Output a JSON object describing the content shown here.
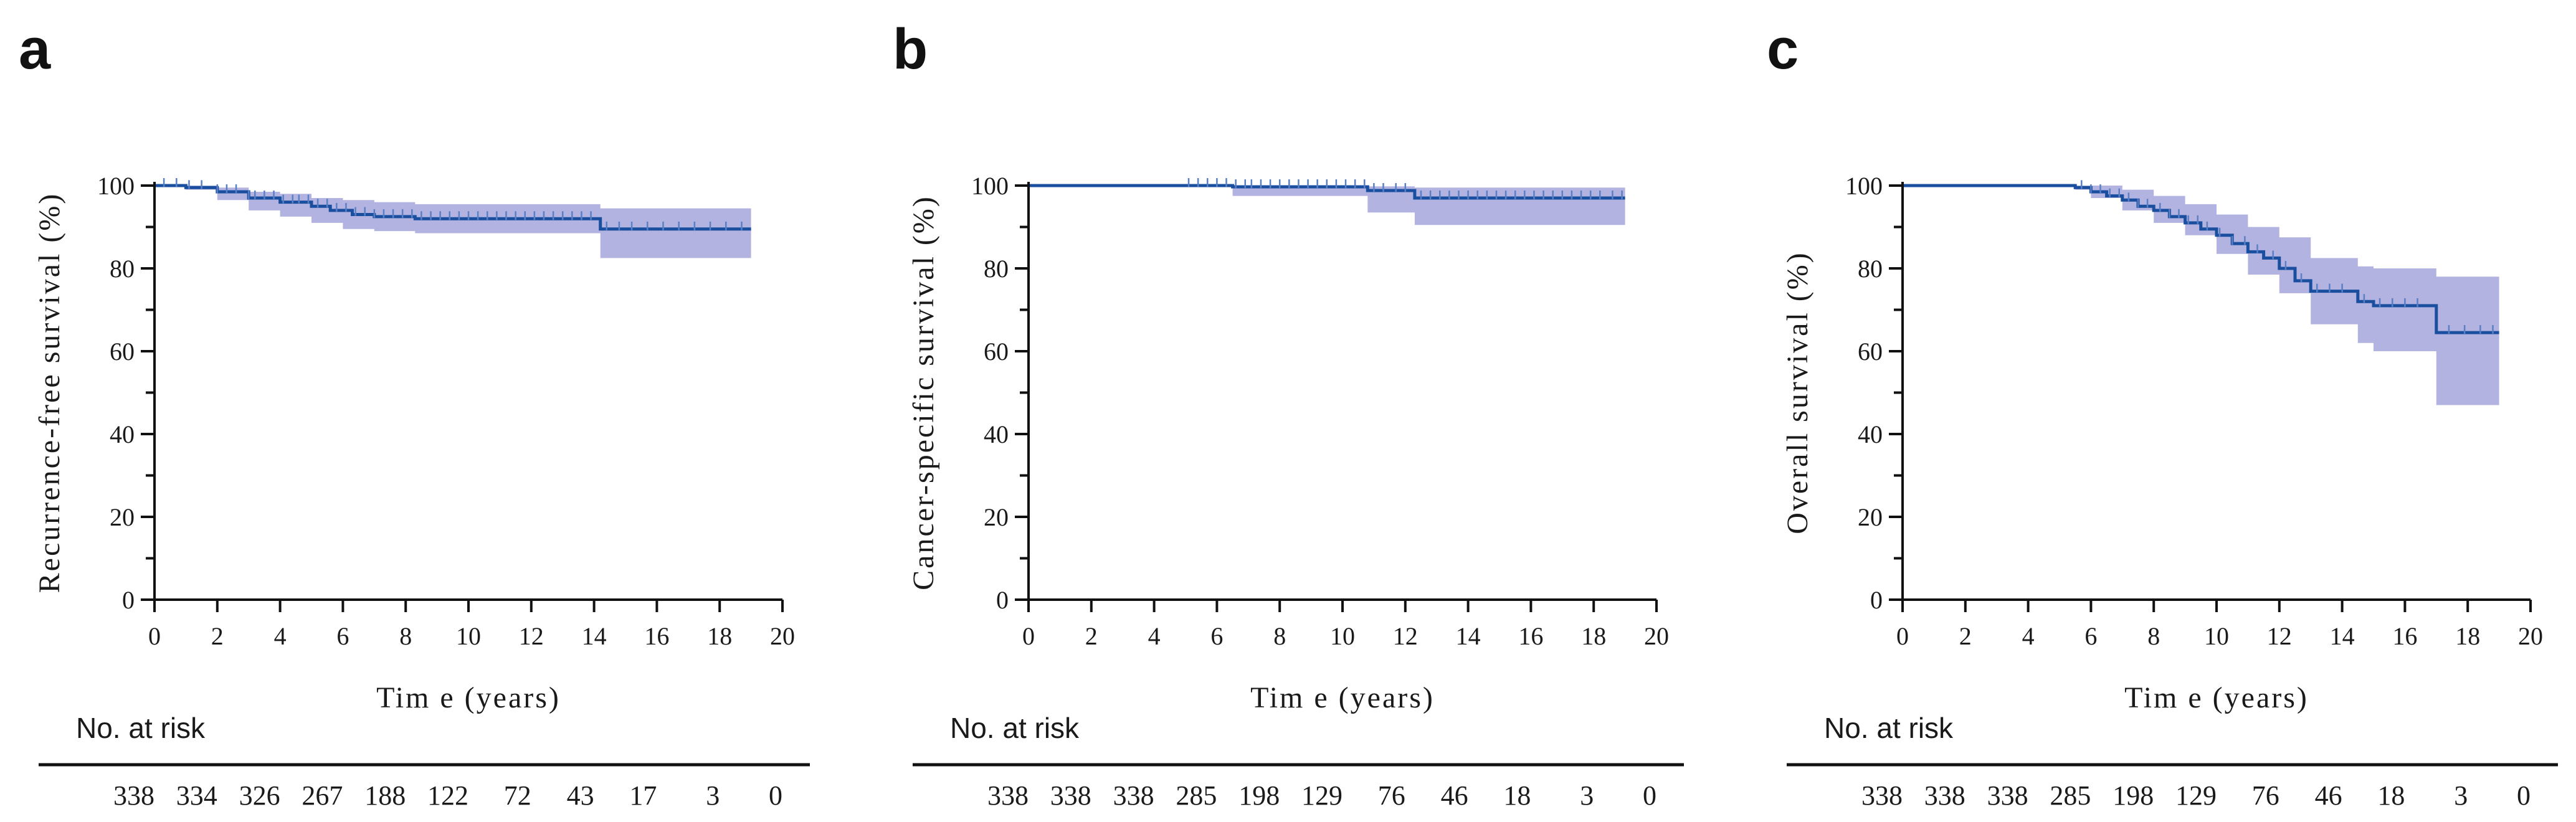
{
  "colors": {
    "line": "#1a4fa0",
    "band": "#b3b3e2",
    "axis": "#111111",
    "censor": "#5a7fc4"
  },
  "chart_data": [
    {
      "panel": "a",
      "type": "line",
      "title": "",
      "xlabel": "Tim e  (years)",
      "ylabel": "Recurrence-free survival (%)",
      "xlim": [
        0,
        20
      ],
      "ylim": [
        0,
        100
      ],
      "xticks": [
        0,
        2,
        4,
        6,
        8,
        10,
        12,
        14,
        16,
        18,
        20
      ],
      "yticks": [
        0,
        20,
        40,
        60,
        80,
        100
      ],
      "series": [
        {
          "name": "survival",
          "x": [
            0,
            1,
            2,
            3,
            4,
            5,
            5.6,
            6.3,
            7,
            8.3,
            14.2,
            19
          ],
          "y": [
            100,
            99.5,
            98.5,
            97,
            96,
            95,
            94,
            93,
            92.5,
            92,
            89.5,
            89.5
          ]
        },
        {
          "name": "ci_upper",
          "x": [
            0,
            1,
            2,
            3,
            4,
            5,
            6,
            7,
            8.3,
            14.2,
            19
          ],
          "y": [
            100,
            100,
            99.5,
            98.5,
            98,
            97,
            96.5,
            96,
            95.5,
            94.5,
            94.5
          ]
        },
        {
          "name": "ci_lower",
          "x": [
            0,
            1,
            2,
            3,
            4,
            5,
            6,
            7,
            8.3,
            14.2,
            19
          ],
          "y": [
            100,
            99,
            96.5,
            94,
            92.5,
            91,
            89.5,
            89,
            88.5,
            82.5,
            82.5
          ]
        }
      ],
      "censor_x": [
        0.3,
        0.7,
        1.1,
        1.5,
        2.0,
        2.3,
        2.6,
        3.0,
        3.2,
        3.5,
        3.8,
        4.1,
        4.4,
        4.6,
        4.9,
        5.2,
        5.5,
        5.8,
        6.1,
        6.4,
        6.7,
        7.0,
        7.3,
        7.6,
        7.9,
        8.2,
        8.5,
        8.8,
        9.1,
        9.4,
        9.7,
        10.0,
        10.3,
        10.6,
        10.9,
        11.2,
        11.5,
        11.8,
        12.1,
        12.4,
        12.7,
        13.0,
        13.3,
        13.6,
        13.9,
        14.4,
        14.8,
        15.2,
        15.7,
        16.2,
        16.7,
        17.2,
        17.7,
        18.2,
        18.7
      ],
      "risk_title": "No. at risk",
      "risk_numbers": [
        "338",
        "334",
        "326",
        "267",
        "188",
        "122",
        "72",
        "43",
        "17",
        "3",
        "0"
      ]
    },
    {
      "panel": "b",
      "type": "line",
      "title": "",
      "xlabel": "Tim e  (years)",
      "ylabel": "Cancer-specific survival (%)",
      "xlim": [
        0,
        20
      ],
      "ylim": [
        0,
        100
      ],
      "xticks": [
        0,
        2,
        4,
        6,
        8,
        10,
        12,
        14,
        16,
        18,
        20
      ],
      "yticks": [
        0,
        20,
        40,
        60,
        80,
        100
      ],
      "series": [
        {
          "name": "survival",
          "x": [
            0,
            6.5,
            10.8,
            12.3,
            19
          ],
          "y": [
            100,
            99.7,
            98.8,
            97,
            97
          ]
        },
        {
          "name": "ci_upper",
          "x": [
            0,
            6.5,
            10.8,
            12.3,
            19
          ],
          "y": [
            100,
            100,
            99.8,
            99.5,
            99.5
          ]
        },
        {
          "name": "ci_lower",
          "x": [
            0,
            6.5,
            10.8,
            12.3,
            19
          ],
          "y": [
            100,
            97.5,
            93.5,
            90.5,
            90.5
          ]
        }
      ],
      "censor_x": [
        5.1,
        5.4,
        5.7,
        6.0,
        6.3,
        6.6,
        6.9,
        7.1,
        7.4,
        7.7,
        8.0,
        8.3,
        8.6,
        8.9,
        9.2,
        9.5,
        9.8,
        10.1,
        10.4,
        10.7,
        11.0,
        11.3,
        11.7,
        12.0,
        12.5,
        12.8,
        13.1,
        13.4,
        13.7,
        14.0,
        14.3,
        14.6,
        14.9,
        15.2,
        15.5,
        15.8,
        16.1,
        16.4,
        16.7,
        17.0,
        17.3,
        17.6,
        17.9,
        18.2,
        18.6,
        18.9
      ],
      "risk_title": "No. at risk",
      "risk_numbers": [
        "338",
        "338",
        "338",
        "285",
        "198",
        "129",
        "76",
        "46",
        "18",
        "3",
        "0"
      ]
    },
    {
      "panel": "c",
      "type": "line",
      "title": "",
      "xlabel": "Tim e  (years)",
      "ylabel": "Overall survival (%)",
      "xlim": [
        0,
        20
      ],
      "ylim": [
        0,
        100
      ],
      "xticks": [
        0,
        2,
        4,
        6,
        8,
        10,
        12,
        14,
        16,
        18,
        20
      ],
      "yticks": [
        0,
        20,
        40,
        60,
        80,
        100
      ],
      "series": [
        {
          "name": "survival",
          "x": [
            0,
            5.5,
            6.0,
            6.5,
            7.0,
            7.5,
            8.0,
            8.5,
            9.0,
            9.5,
            10.0,
            10.5,
            11.0,
            11.5,
            12.0,
            12.5,
            13.0,
            14.5,
            15.0,
            17.0,
            19.0
          ],
          "y": [
            100,
            99.5,
            98.5,
            97.5,
            96.5,
            95,
            94,
            92.5,
            91,
            89.5,
            88,
            86,
            84,
            82.5,
            80,
            77,
            74.5,
            72,
            71,
            64.5,
            64.5
          ]
        },
        {
          "name": "ci_upper",
          "x": [
            0,
            5.5,
            6.0,
            7.0,
            8.0,
            9.0,
            10.0,
            11.0,
            12.0,
            13.0,
            14.5,
            15.0,
            17.0,
            19.0
          ],
          "y": [
            100,
            100,
            100,
            99,
            97.5,
            95.5,
            93,
            90,
            87.5,
            82.5,
            80.5,
            80,
            78,
            77
          ]
        },
        {
          "name": "ci_lower",
          "x": [
            0,
            5.5,
            6.0,
            7.0,
            8.0,
            9.0,
            10.0,
            11.0,
            12.0,
            13.0,
            14.5,
            15.0,
            17.0,
            19.0
          ],
          "y": [
            100,
            99,
            97,
            94,
            91,
            88,
            83.5,
            78.5,
            74,
            66.5,
            62,
            60,
            47,
            47
          ]
        }
      ],
      "censor_x": [
        5.7,
        6.0,
        6.3,
        6.6,
        6.9,
        7.2,
        7.5,
        7.8,
        8.2,
        8.5,
        8.8,
        9.1,
        9.4,
        9.7,
        10.1,
        10.5,
        10.9,
        11.3,
        11.8,
        12.2,
        12.7,
        13.2,
        13.6,
        14.0,
        14.7,
        15.2,
        15.6,
        16.0,
        16.4,
        17.4,
        17.9,
        18.4,
        18.8
      ],
      "risk_title": "No. at risk",
      "risk_numbers": [
        "338",
        "338",
        "338",
        "285",
        "198",
        "129",
        "76",
        "46",
        "18",
        "3",
        "0"
      ]
    }
  ]
}
